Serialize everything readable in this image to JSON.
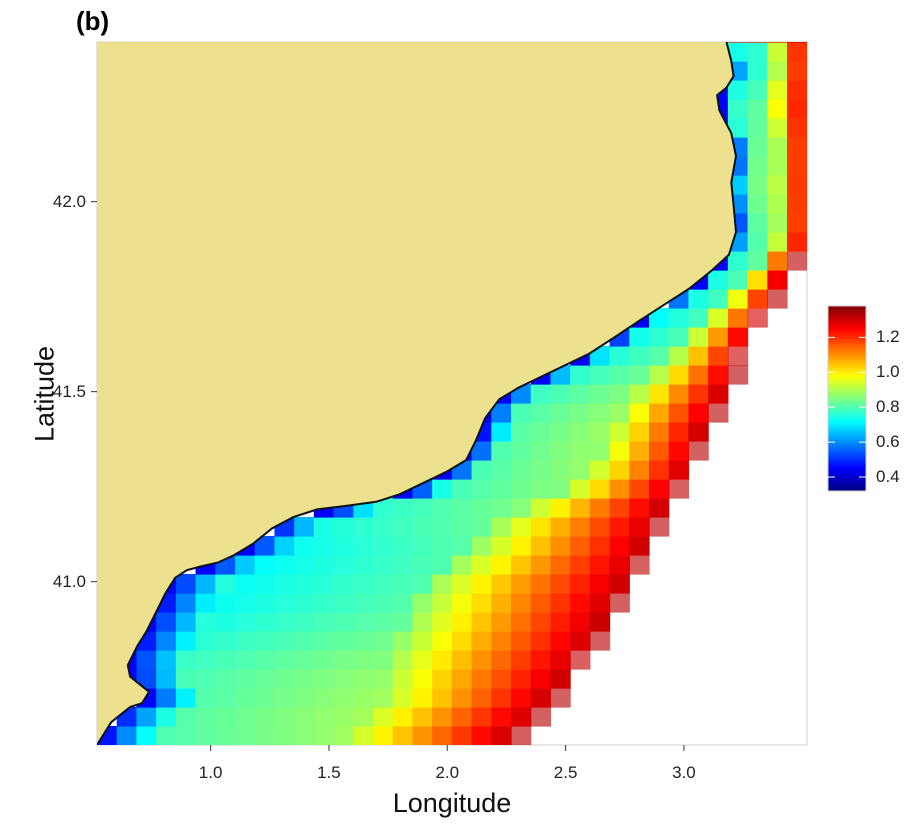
{
  "panel_label": "(b)",
  "chart_data": {
    "type": "heatmap",
    "xlabel": "Longitude",
    "ylabel": "Latitude",
    "xlim": [
      0.52,
      3.52
    ],
    "ylim": [
      40.57,
      42.42
    ],
    "x_ticks": [
      {
        "value": 1.0,
        "label": "1.0"
      },
      {
        "value": 1.5,
        "label": "1.5"
      },
      {
        "value": 2.0,
        "label": "2.0"
      },
      {
        "value": 2.5,
        "label": "2.5"
      },
      {
        "value": 3.0,
        "label": "3.0"
      }
    ],
    "y_ticks": [
      {
        "value": 41.0,
        "label": "41.0"
      },
      {
        "value": 41.5,
        "label": "41.5"
      },
      {
        "value": 42.0,
        "label": "42.0"
      }
    ],
    "grid": false,
    "land_color": "#ede18f",
    "coast_color": "#111111",
    "colorbar": {
      "min": 0.32,
      "max": 1.38,
      "ticks": [
        {
          "value": 0.4,
          "label": "0.4"
        },
        {
          "value": 0.6,
          "label": "0.6"
        },
        {
          "value": 0.8,
          "label": "0.8"
        },
        {
          "value": 1.0,
          "label": "1.0"
        },
        {
          "value": 1.2,
          "label": "1.2"
        }
      ],
      "colors": [
        "#000080",
        "#0000ff",
        "#0080ff",
        "#00ffff",
        "#80ff80",
        "#ffff00",
        "#ff8000",
        "#ff0000",
        "#800000"
      ]
    },
    "grid_cell_deg": {
      "lon": 0.0833,
      "lat": 0.05
    },
    "coastline": [
      [
        0.52,
        40.57
      ],
      [
        0.58,
        40.63
      ],
      [
        0.66,
        40.67
      ],
      [
        0.71,
        40.68
      ],
      [
        0.74,
        40.71
      ],
      [
        0.7,
        40.73
      ],
      [
        0.66,
        40.75
      ],
      [
        0.65,
        40.78
      ],
      [
        0.69,
        40.83
      ],
      [
        0.73,
        40.87
      ],
      [
        0.77,
        40.92
      ],
      [
        0.81,
        40.97
      ],
      [
        0.85,
        41.01
      ],
      [
        0.9,
        41.03
      ],
      [
        0.96,
        41.04
      ],
      [
        1.03,
        41.05
      ],
      [
        1.1,
        41.07
      ],
      [
        1.18,
        41.1
      ],
      [
        1.26,
        41.14
      ],
      [
        1.35,
        41.17
      ],
      [
        1.45,
        41.19
      ],
      [
        1.58,
        41.2
      ],
      [
        1.7,
        41.21
      ],
      [
        1.8,
        41.23
      ],
      [
        1.9,
        41.26
      ],
      [
        2.0,
        41.29
      ],
      [
        2.08,
        41.32
      ],
      [
        2.12,
        41.37
      ],
      [
        2.16,
        41.43
      ],
      [
        2.22,
        41.48
      ],
      [
        2.3,
        41.51
      ],
      [
        2.4,
        41.54
      ],
      [
        2.5,
        41.57
      ],
      [
        2.6,
        41.6
      ],
      [
        2.7,
        41.64
      ],
      [
        2.82,
        41.69
      ],
      [
        2.92,
        41.73
      ],
      [
        3.02,
        41.77
      ],
      [
        3.12,
        41.82
      ],
      [
        3.19,
        41.86
      ],
      [
        3.22,
        41.92
      ],
      [
        3.21,
        41.99
      ],
      [
        3.2,
        42.05
      ],
      [
        3.22,
        42.12
      ],
      [
        3.2,
        42.18
      ],
      [
        3.15,
        42.24
      ],
      [
        3.14,
        42.28
      ],
      [
        3.18,
        42.3
      ],
      [
        3.21,
        42.33
      ],
      [
        3.2,
        42.37
      ],
      [
        3.18,
        42.42
      ]
    ],
    "sea_edge": [
      [
        2.25,
        40.57
      ],
      [
        2.37,
        40.64
      ],
      [
        2.5,
        40.73
      ],
      [
        2.62,
        40.83
      ],
      [
        2.73,
        40.95
      ],
      [
        2.82,
        41.05
      ],
      [
        2.91,
        41.17
      ],
      [
        3.02,
        41.29
      ],
      [
        3.09,
        41.4
      ],
      [
        3.2,
        41.52
      ],
      [
        3.26,
        41.63
      ],
      [
        3.34,
        41.71
      ],
      [
        3.42,
        41.8
      ],
      [
        3.47,
        41.87
      ],
      [
        3.52,
        41.9
      ]
    ],
    "value_model": {
      "coast_value": 0.45,
      "near_shore_value": 0.76,
      "offshore_value": 1.32
    }
  }
}
